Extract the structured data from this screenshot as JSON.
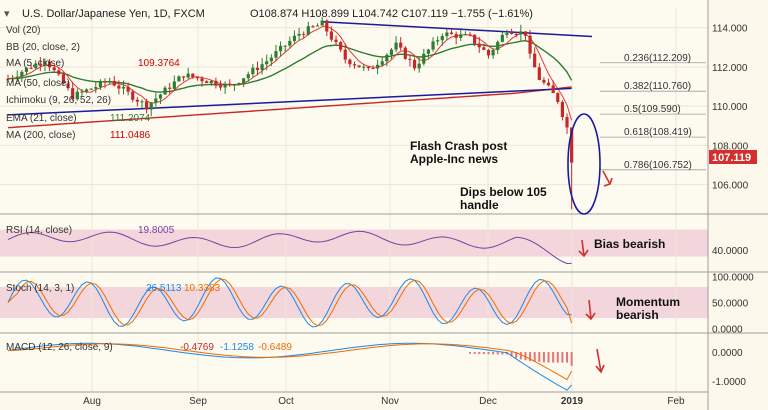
{
  "header": {
    "symbol_title": "U.S. Dollar/Japanese Yen, 1D, FXCM",
    "ohlc": "O108.874  H108.899  L104.742  C107.119  −1.755  (−1.61%)"
  },
  "indicators": [
    {
      "label": "Vol (20)",
      "value": "",
      "color": "#333333"
    },
    {
      "label": "BB (20, close, 2)",
      "value": "",
      "color": "#333333"
    },
    {
      "label": "MA (5, close)",
      "value": "109.3764",
      "color": "#cc0000"
    },
    {
      "label": "MA (50, close)",
      "value": "",
      "color": "#333333"
    },
    {
      "label": "Ichimoku (9, 26, 52, 26)",
      "value": "",
      "color": "#333333"
    },
    {
      "label": "EMA (21, close)",
      "value": "111.2074",
      "color": "#2e7d32"
    },
    {
      "label": "MA (200, close)",
      "value": "111.0486",
      "color": "#cc0000"
    }
  ],
  "annotations": {
    "flash_crash": [
      "Flash Crash post",
      "Apple-Inc news"
    ],
    "dips": [
      "Dips below 105",
      "handle"
    ],
    "rsi_note": "Bias bearish",
    "stoch_note": [
      "Momentum",
      "bearish"
    ]
  },
  "price_tag": "107.119",
  "colors": {
    "up": "#2e7d32",
    "down": "#c62828",
    "ema21": "#2e7d32",
    "ma200": "#c62828",
    "trend": "#1a1a9c",
    "fib": "#666666",
    "panel_fill": "#f3d6dc",
    "rsi_line": "#7b3fa0",
    "stoch_k": "#1e88e5",
    "stoch_d": "#ef6c00",
    "macd_line": "#1e88e5",
    "signal_line": "#ef6c00",
    "hist": "#e57373"
  },
  "chart_data": {
    "type": "candlestick",
    "x_ticks": [
      "Aug",
      "Sep",
      "Oct",
      "Nov",
      "Dec",
      "2019",
      "Feb"
    ],
    "price_axis": {
      "ticks": [
        "114.000",
        "112.000",
        "110.000",
        "108.000",
        "106.000"
      ],
      "range": [
        104.5,
        115.0
      ]
    },
    "fib_levels": [
      {
        "label": "0.236(112.209)",
        "value": 112.209
      },
      {
        "label": "0.382(110.760)",
        "value": 110.76
      },
      {
        "label": "0.5(109.590)",
        "value": 109.59
      },
      {
        "label": "0.618(108.419)",
        "value": 108.419
      },
      {
        "label": "0.786(106.752)",
        "value": 106.752
      }
    ],
    "rsi": {
      "label": "RSI (14, close)",
      "value": "19.8005",
      "ticks": [
        "40.0000"
      ],
      "range": [
        10,
        90
      ]
    },
    "stoch": {
      "label": "Stoch (14, 3, 1)",
      "k_value": "26.5113",
      "d_value": "10.3383",
      "ticks": [
        "100.0000",
        "50.0000",
        "0.0000"
      ],
      "range": [
        -5,
        105
      ]
    },
    "macd": {
      "label": "MACD (12, 26, close, 9)",
      "values": [
        "-0.4769",
        "-1.1258",
        "-0.6489"
      ],
      "ticks": [
        "0.0000",
        "-1.0000"
      ],
      "range": [
        -1.3,
        0.55
      ]
    }
  }
}
